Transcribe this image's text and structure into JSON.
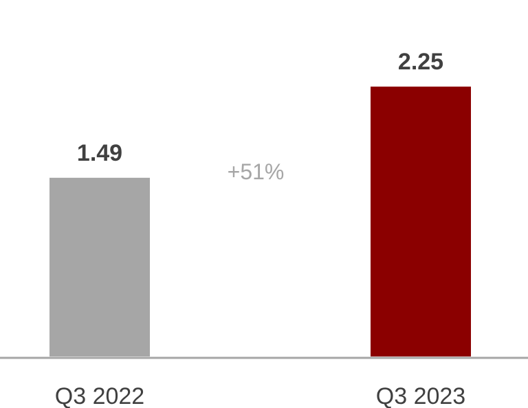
{
  "chart_data": {
    "type": "bar",
    "categories": [
      "Q3 2022",
      "Q3 2023"
    ],
    "values": [
      1.49,
      2.25
    ],
    "value_labels": [
      "1.49",
      "2.25"
    ],
    "bar_colors": [
      "#a6a6a6",
      "#8b0000"
    ],
    "annotation": "+51%",
    "title": "",
    "xlabel": "",
    "ylabel": "",
    "ylim": [
      0,
      2.6
    ],
    "grid": false,
    "legend": "none"
  },
  "colors": {
    "axis": "#a6a6a6",
    "text": "#404040",
    "annotation": "#a6a6a6"
  }
}
